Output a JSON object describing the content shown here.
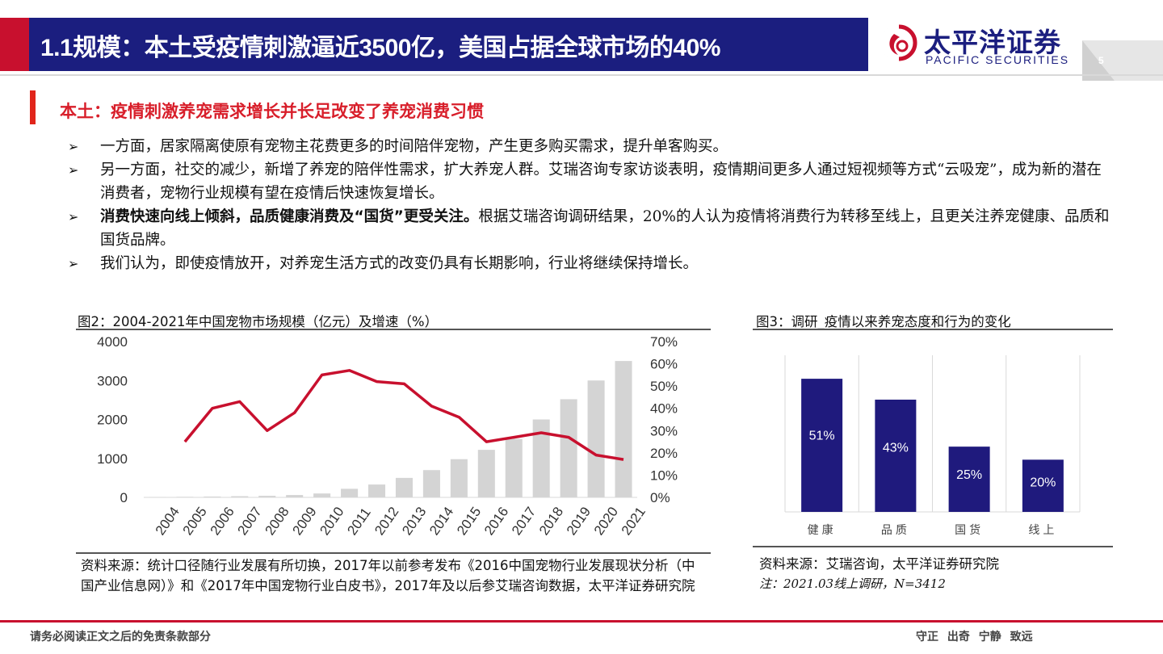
{
  "header": {
    "title": "1.1规模：本土受疫情刺激逼近3500亿，美国占据全球市场的40%",
    "logo_cn": "太平洋证券",
    "logo_en": "PACIFIC SECURITIES",
    "page_number": "5",
    "brand_color": "#1b1e7f",
    "accent_color": "#c8102e"
  },
  "section": {
    "title": "本土：疫情刺激养宠需求增长并长足改变了养宠消费习惯"
  },
  "bullets": [
    {
      "bold": "",
      "text": "一方面，居家隔离使原有宠物主花费更多的时间陪伴宠物，产生更多购买需求，提升单客购买。"
    },
    {
      "bold": "",
      "text": "另一方面，社交的减少，新增了养宠的陪伴性需求，扩大养宠人群。艾瑞咨询专家访谈表明，疫情期间更多人通过短视频等方式“云吸宠”，成为新的潜在消费者，宠物行业规模有望在疫情后快速恢复增长。"
    },
    {
      "bold": "消费快速向线上倾斜，品质健康消费及“国货”更受关注。",
      "text": "根据艾瑞咨询调研结果，20%的人认为疫情将消费行为转移至线上，且更关注养宠健康、品质和国货品牌。"
    },
    {
      "bold": "",
      "text": "我们认为，即使疫情放开，对养宠生活方式的改变仍具有长期影响，行业将继续保持增长。"
    }
  ],
  "figure2": {
    "title": "图2：2004-2021年中国宠物市场规模（亿元）及增速（%）",
    "source": "资料来源：统计口径随行业发展有所切换，2017年以前参考发布《2016中国宠物行业发展现状分析（中国产业信息网）》和《2017年中国宠物行业白皮书》，2017年及以后参艾瑞咨询数据，太平洋证券研究院"
  },
  "figure3": {
    "title": "图3：调研_疫情以来养宠态度和行为的变化",
    "source": "资料来源：艾瑞咨询，太平洋证券研究院",
    "note": "注：2021.03线上调研，N=3412"
  },
  "chart_data": [
    {
      "type": "bar+line",
      "categories": [
        "2004",
        "2005",
        "2006",
        "2007",
        "2008",
        "2009",
        "2010",
        "2011",
        "2012",
        "2013",
        "2014",
        "2015",
        "2016",
        "2017",
        "2018",
        "2019",
        "2020",
        "2021"
      ],
      "series": [
        {
          "type": "bar",
          "axis": "left",
          "color": "#d4d4d4",
          "values": [
            10,
            14,
            20,
            30,
            40,
            60,
            100,
            220,
            330,
            500,
            700,
            980,
            1220,
            1500,
            2000,
            2520,
            3000,
            3500
          ]
        },
        {
          "type": "line",
          "axis": "right",
          "color": "#c8102e",
          "values": [
            null,
            25,
            40,
            43,
            30,
            38,
            55,
            57,
            52,
            51,
            41,
            36,
            25,
            27,
            29,
            27,
            19,
            17
          ]
        }
      ],
      "ylim_left": [
        0,
        4000
      ],
      "yticks_left": [
        "0",
        "1000",
        "2000",
        "3000",
        "4000"
      ],
      "ylim_right": [
        0,
        70
      ],
      "yticks_right": [
        "0%",
        "10%",
        "20%",
        "30%",
        "40%",
        "50%",
        "60%",
        "70%"
      ],
      "grid": false,
      "legend": "none"
    },
    {
      "type": "bar",
      "categories": [
        "健康",
        "品质",
        "国货",
        "线上"
      ],
      "values": [
        51,
        43,
        25,
        20
      ],
      "labels": [
        "51%",
        "43%",
        "25%",
        "20%"
      ],
      "ylim": [
        0,
        60
      ],
      "color": "#1f1a7d",
      "grid": "vertical separators"
    }
  ],
  "footer": {
    "disclaimer": "请务必阅读正文之后的免责条款部分",
    "motto": "守正 出奇 宁静 致远"
  }
}
